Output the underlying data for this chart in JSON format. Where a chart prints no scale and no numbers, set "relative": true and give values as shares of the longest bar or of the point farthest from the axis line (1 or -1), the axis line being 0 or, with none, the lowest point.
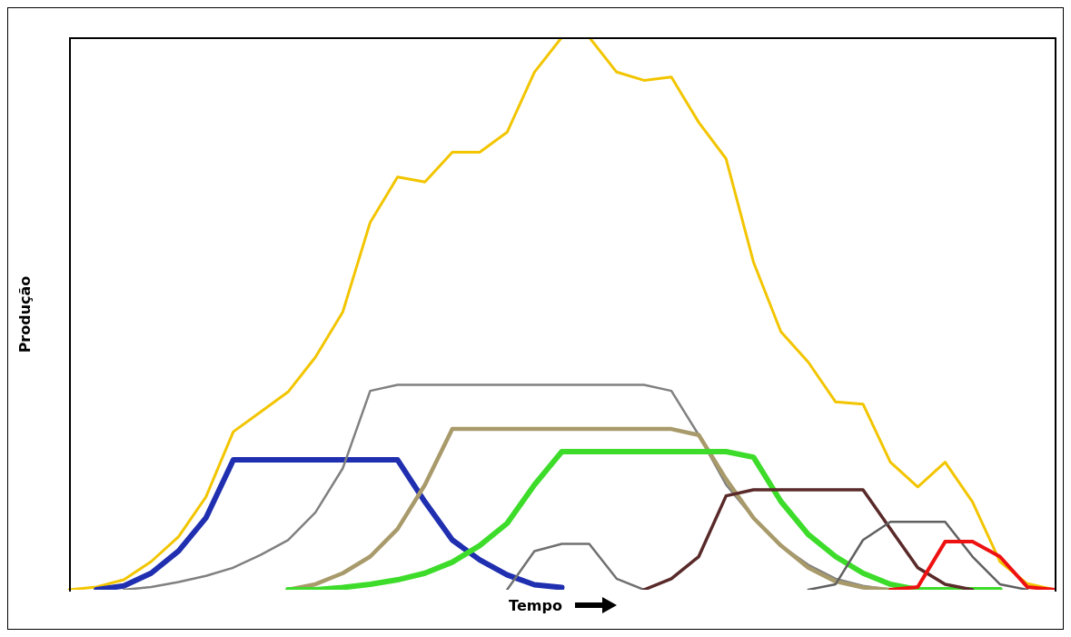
{
  "chart_data": {
    "type": "line",
    "xlabel": "Tempo",
    "ylabel": "Produção",
    "relative": true,
    "grid": false,
    "legend": false,
    "marker": "none",
    "line_style": "solid",
    "categories": [
      null,
      null,
      null,
      null,
      null,
      null,
      null,
      null,
      null,
      null,
      null,
      null,
      null,
      null,
      null,
      null,
      null,
      null,
      null,
      null,
      null,
      null,
      null,
      null,
      null,
      null,
      null,
      null,
      null,
      null,
      null,
      null,
      null,
      null,
      null,
      null,
      null
    ],
    "series": [
      {
        "color": "#f2c500",
        "values": [
          0,
          0.005,
          0.018,
          0.051,
          0.096,
          0.168,
          0.286,
          0.322,
          0.358,
          0.421,
          0.503,
          0.665,
          0.747,
          0.738,
          0.792,
          0.792,
          0.828,
          0.937,
          1,
          1,
          0.937,
          0.922,
          0.928,
          0.846,
          0.78,
          0.593,
          0.467,
          0.412,
          0.34,
          0.336,
          0.231,
          0.186,
          0.231,
          0.159,
          0.051,
          0.011,
          0
        ]
      },
      {
        "color": "#1f2fb0",
        "values": [
          null,
          0,
          0.007,
          0.03,
          0.07,
          0.13,
          0.235,
          0.235,
          0.235,
          0.235,
          0.235,
          0.235,
          0.235,
          0.159,
          0.09,
          0.054,
          0.027,
          0.009,
          0.004,
          null,
          null,
          null,
          null,
          null,
          null,
          null,
          null,
          null,
          null,
          null,
          null,
          null,
          null,
          null,
          null,
          null,
          null
        ]
      },
      {
        "color": "#808080",
        "values": [
          null,
          null,
          0,
          0.005,
          0.014,
          0.025,
          0.04,
          0.063,
          0.09,
          0.14,
          0.22,
          0.36,
          0.371,
          0.371,
          0.371,
          0.371,
          0.371,
          0.371,
          0.371,
          0.371,
          0.371,
          0.371,
          0.36,
          0.28,
          0.19,
          0.13,
          0.08,
          0.045,
          0.02,
          0.007,
          0,
          null,
          null,
          null,
          null,
          null,
          null
        ]
      },
      {
        "color": "#a89a6a",
        "values": [
          null,
          null,
          null,
          null,
          null,
          null,
          null,
          null,
          0,
          0.01,
          0.03,
          0.06,
          0.11,
          0.19,
          0.291,
          0.291,
          0.291,
          0.291,
          0.291,
          0.291,
          0.291,
          0.291,
          0.291,
          0.28,
          0.2,
          0.13,
          0.08,
          0.04,
          0.015,
          0.004,
          0,
          null,
          null,
          null,
          null,
          null,
          null
        ]
      },
      {
        "color": "#3ddc2a",
        "values": [
          null,
          null,
          null,
          null,
          null,
          null,
          null,
          null,
          0,
          0,
          0.004,
          0.01,
          0.018,
          0.03,
          0.05,
          0.08,
          0.12,
          0.19,
          0.25,
          0.25,
          0.25,
          0.25,
          0.25,
          0.25,
          0.25,
          0.24,
          0.16,
          0.1,
          0.06,
          0.03,
          0.01,
          0,
          0,
          0,
          0,
          null,
          null
        ]
      },
      {
        "color": "#707070",
        "values": [
          null,
          null,
          null,
          null,
          null,
          null,
          null,
          null,
          null,
          null,
          null,
          null,
          null,
          null,
          null,
          null,
          0,
          0.07,
          0.083,
          0.083,
          0.02,
          0,
          null,
          null,
          null,
          null,
          null,
          null,
          null,
          null,
          null,
          null,
          null,
          null,
          null,
          null,
          null
        ]
      },
      {
        "color": "#5a2a2a",
        "values": [
          null,
          null,
          null,
          null,
          null,
          null,
          null,
          null,
          null,
          null,
          null,
          null,
          null,
          null,
          null,
          null,
          null,
          null,
          null,
          null,
          null,
          0,
          0.02,
          0.06,
          0.17,
          0.181,
          0.181,
          0.181,
          0.181,
          0.181,
          0.11,
          0.04,
          0.01,
          0,
          null,
          null,
          null
        ]
      },
      {
        "color": "#606060",
        "values": [
          null,
          null,
          null,
          null,
          null,
          null,
          null,
          null,
          null,
          null,
          null,
          null,
          null,
          null,
          null,
          null,
          null,
          null,
          null,
          null,
          null,
          null,
          null,
          null,
          null,
          null,
          null,
          0,
          0.01,
          0.09,
          0.123,
          0.123,
          0.123,
          0.06,
          0.01,
          0,
          null
        ]
      },
      {
        "color": "#ee1111",
        "values": [
          null,
          null,
          null,
          null,
          null,
          null,
          null,
          null,
          null,
          null,
          null,
          null,
          null,
          null,
          null,
          null,
          null,
          null,
          null,
          null,
          null,
          null,
          null,
          null,
          null,
          null,
          null,
          null,
          null,
          null,
          0,
          0.005,
          0.087,
          0.087,
          0.06,
          0.005,
          0
        ]
      }
    ]
  }
}
